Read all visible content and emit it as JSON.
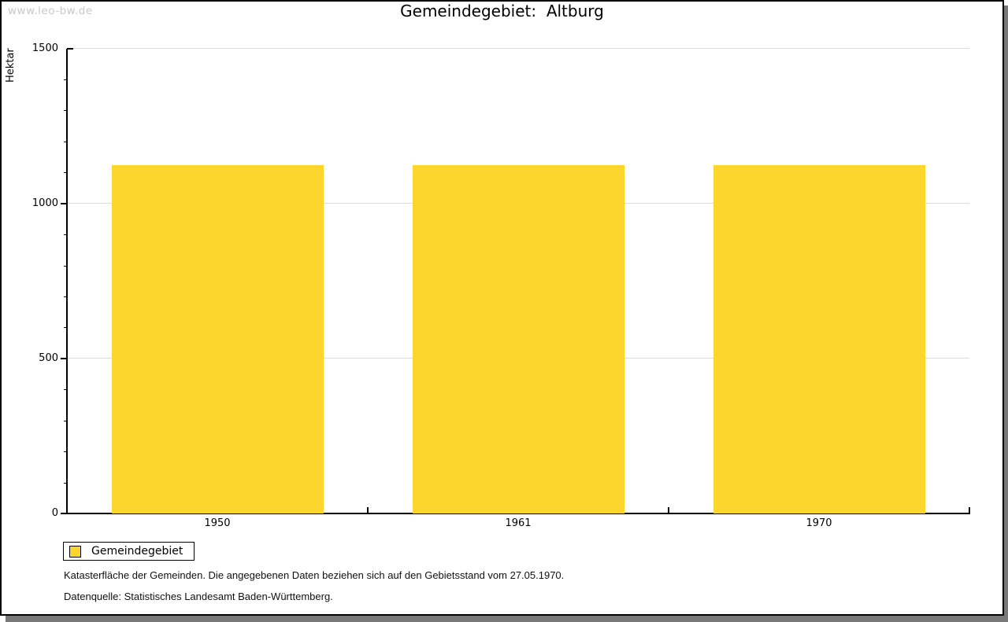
{
  "page": {
    "watermark": "www.leo-bw.de"
  },
  "header": {
    "title": "Gemeindegebiet:  Altburg"
  },
  "chart_data": {
    "type": "bar",
    "title": "Gemeindegebiet: Altburg",
    "categories": [
      "1950",
      "1961",
      "1970"
    ],
    "series": [
      {
        "name": "Gemeindegebiet",
        "values": [
          1124,
          1124,
          1124
        ]
      }
    ],
    "xlabel": "",
    "ylabel": "Hektar",
    "ylim": [
      0,
      1500
    ],
    "yticks_major": [
      0,
      500,
      1000,
      1500
    ],
    "ytick_labels": [
      "0",
      "500",
      "1000",
      "1500"
    ],
    "minor_tick_interval": 100,
    "grid": "horizontal gridlines at major ticks",
    "legend_position": "bottom-left",
    "bar_color": "#FDD62D"
  },
  "legend": {
    "items": [
      {
        "label": "Gemeindegebiet",
        "swatch_color": "#FDD62D"
      }
    ]
  },
  "footnotes": {
    "line1": "Katasterfläche der Gemeinden. Die angegebenen Daten beziehen sich auf den Gebietsstand vom 27.05.1970.",
    "line2": "Datenquelle: Statistisches Landesamt Baden-Württemberg."
  },
  "colors": {
    "bar_yellow": "#FDD62D",
    "gridline_gray": "#DCDCDC",
    "watermark_gray": "#C8C8C8",
    "frame_shadow_gray": "#787878",
    "axis_black": "#000000"
  }
}
